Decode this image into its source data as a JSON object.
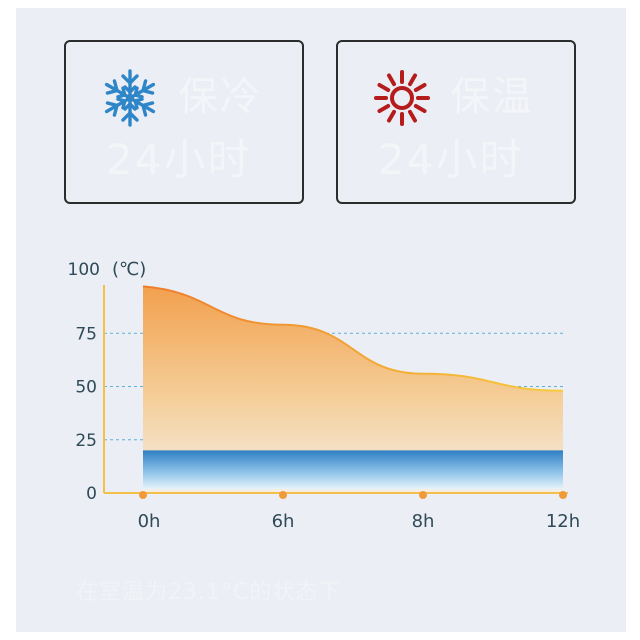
{
  "cards": [
    {
      "icon": "snowflake-icon",
      "line1": "保冷",
      "line2": "24小时",
      "icon_color": "#2e86c8"
    },
    {
      "icon": "sun-icon",
      "line1": "保温",
      "line2": "24小时",
      "icon_color": "#b51c1c"
    }
  ],
  "chart_data": {
    "type": "area",
    "ylabel": "(℃)",
    "ylim": [
      0,
      100
    ],
    "yticks": [
      0,
      25,
      50,
      75,
      100
    ],
    "categories": [
      "0h",
      "6h",
      "8h",
      "12h"
    ],
    "series": [
      {
        "values": [
          97,
          79,
          56,
          48
        ],
        "color": "#f0a050"
      },
      {
        "values": [
          20,
          20,
          20,
          20
        ],
        "color": "#3a8ccc"
      }
    ],
    "grid_lines": [
      25,
      50,
      75
    ],
    "axis_color": "#f4c048",
    "marker_color": "#f09a3a"
  },
  "footnote": "在室温为23.1°C的状态下"
}
